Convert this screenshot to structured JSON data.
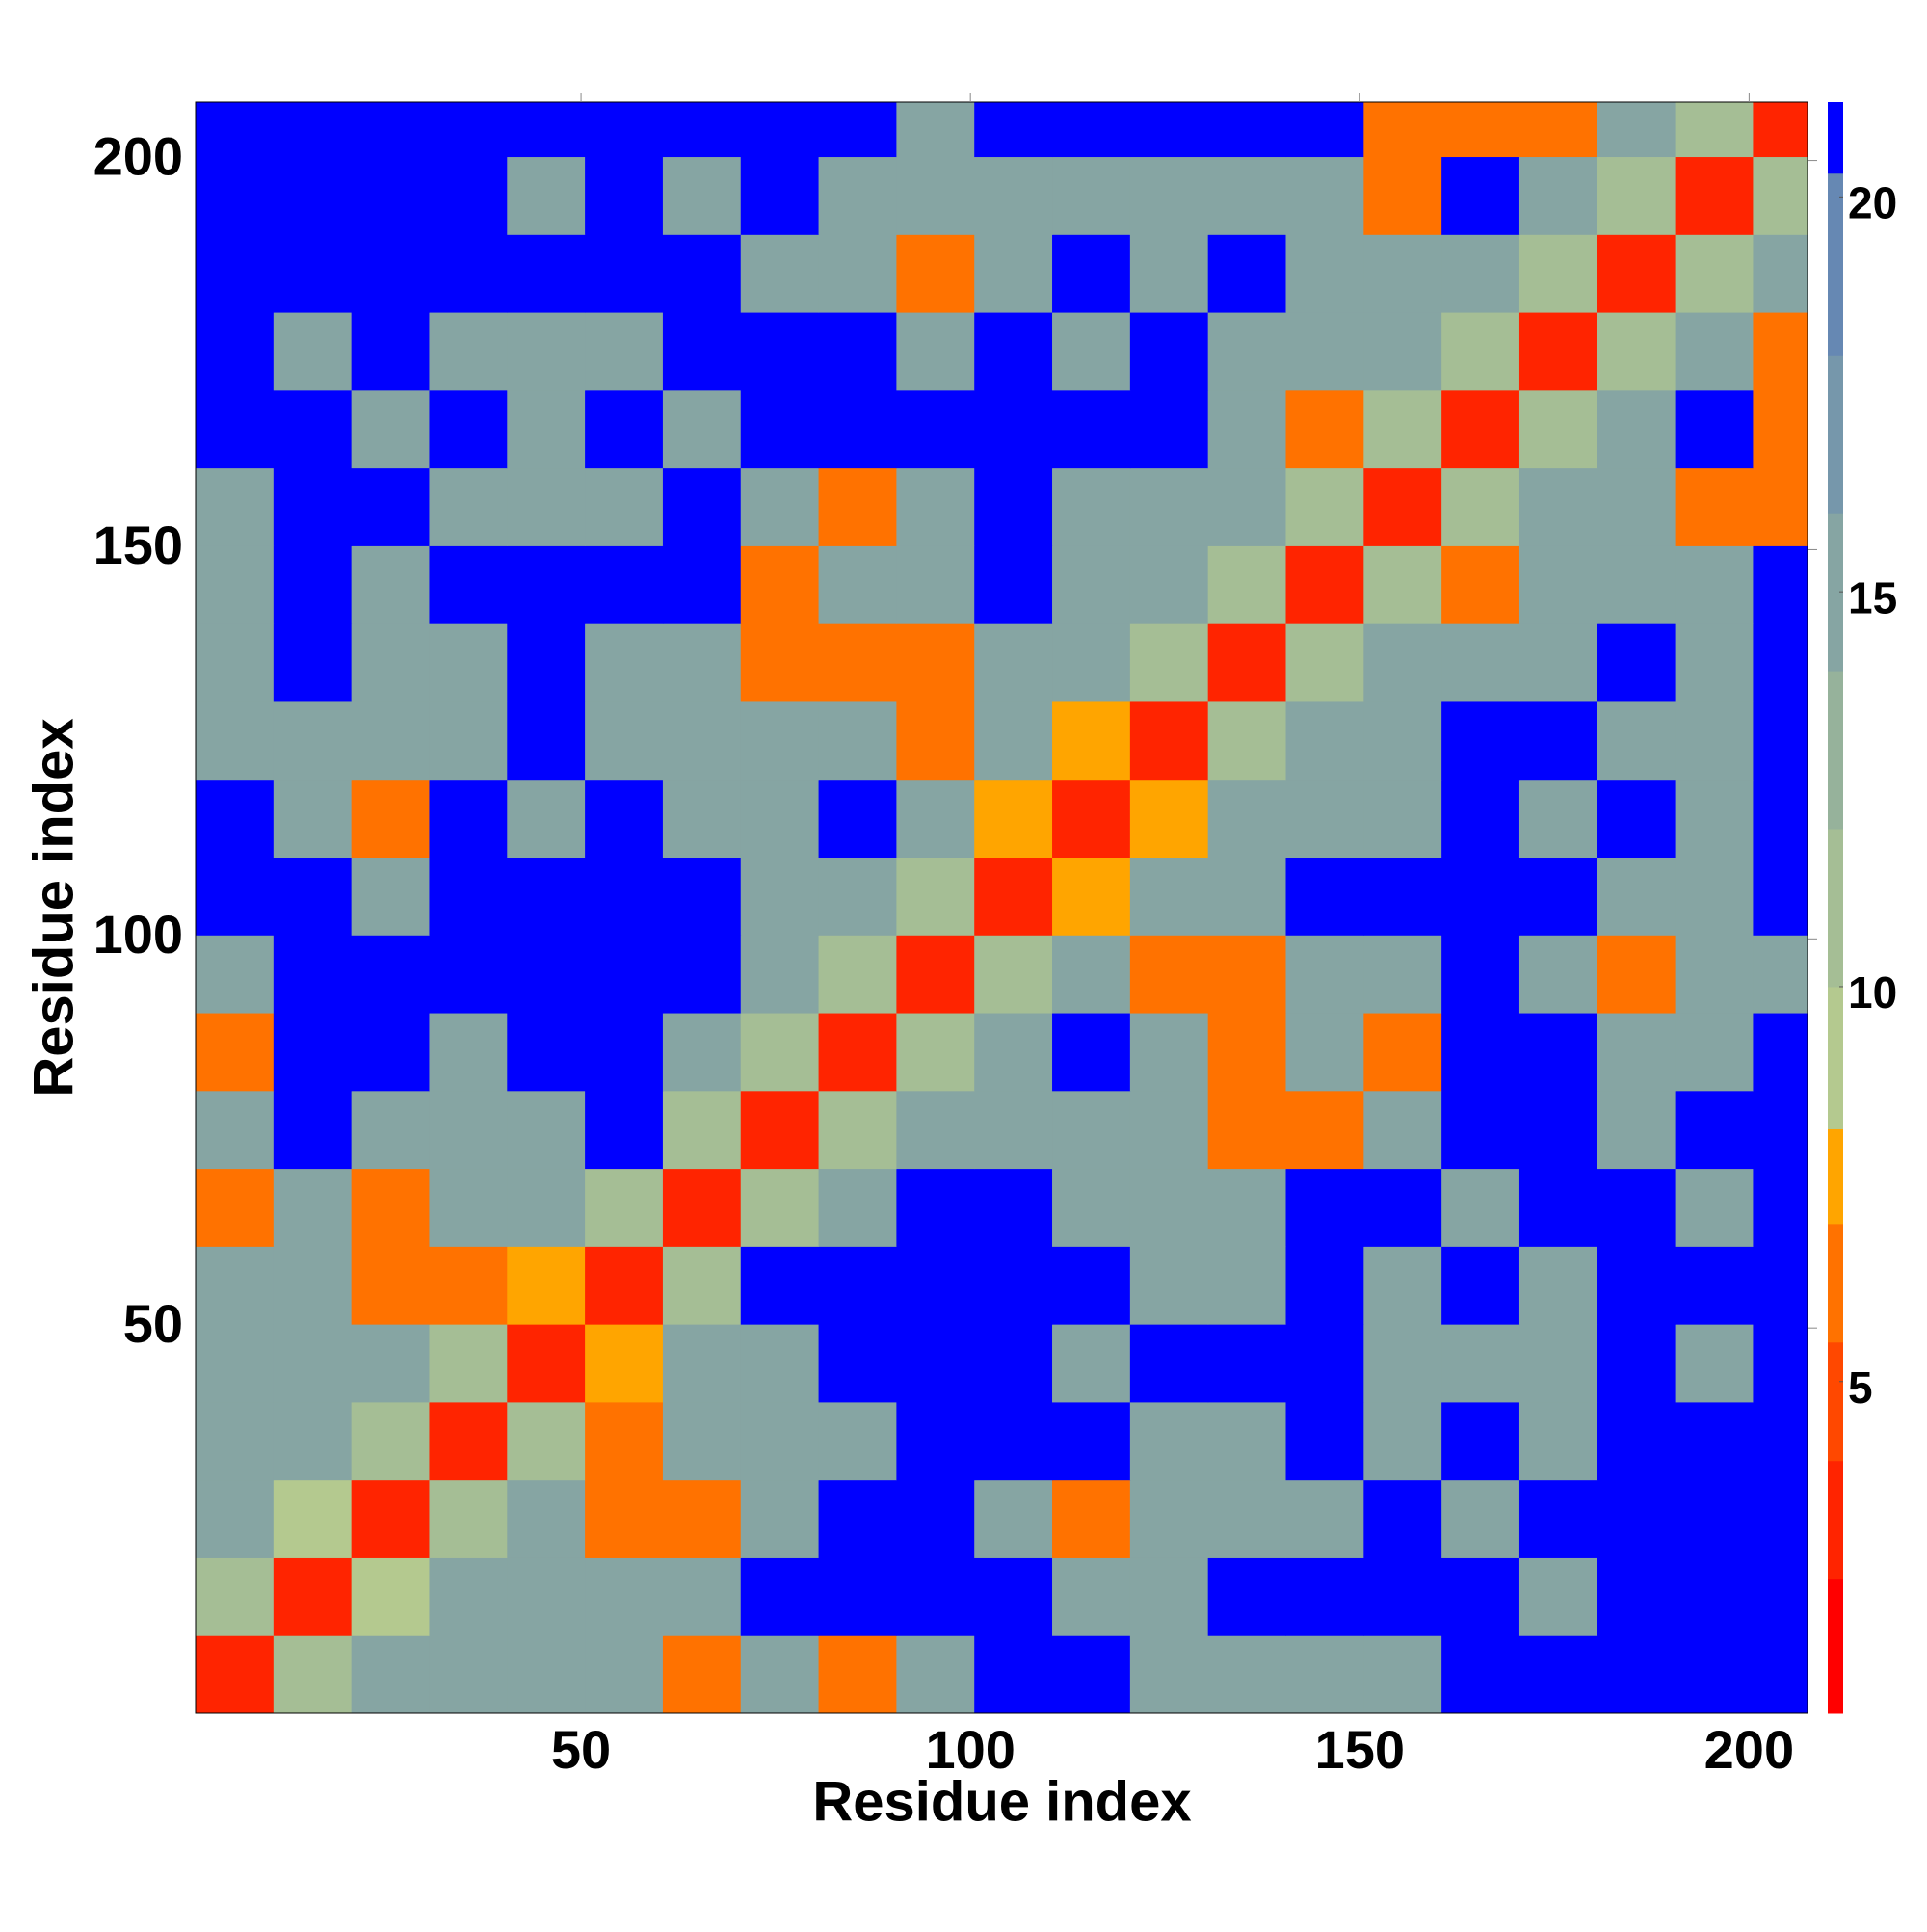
{
  "chart_data": {
    "type": "heatmap",
    "xlabel": "Residue index",
    "ylabel": "Residue index",
    "xlim": [
      0.5,
      207.5
    ],
    "ylim": [
      0.5,
      207.5
    ],
    "xticks": [
      50,
      100,
      150,
      200
    ],
    "yticks": [
      50,
      100,
      150,
      200
    ],
    "xbins": [
      0.5,
      10.5,
      20.5,
      30.5,
      40.5,
      50.5,
      60.5,
      70.5,
      80.5,
      90.5,
      100.5,
      110.5,
      120.5,
      130.5,
      140.5,
      150.5,
      160.5,
      170.5,
      180.5,
      190.5,
      200.5,
      207.5
    ],
    "ybins": [
      0.5,
      10.5,
      20.5,
      30.5,
      40.5,
      50.5,
      60.5,
      70.5,
      80.5,
      90.5,
      100.5,
      110.5,
      120.5,
      130.5,
      140.5,
      150.5,
      160.5,
      170.5,
      180.5,
      190.5,
      200.5,
      207.5
    ],
    "values": [
      [
        3,
        11,
        14,
        14,
        14,
        14,
        6,
        14,
        6,
        14,
        21,
        21,
        14,
        14,
        14,
        14,
        21,
        21,
        21,
        21,
        21
      ],
      [
        11,
        3,
        9,
        14,
        14,
        14,
        14,
        21,
        21,
        21,
        21,
        14,
        14,
        21,
        21,
        21,
        21,
        14,
        21,
        21,
        21
      ],
      [
        14,
        9,
        3,
        11,
        14,
        6,
        6,
        14,
        21,
        21,
        14,
        6,
        14,
        14,
        14,
        21,
        14,
        21,
        21,
        21,
        21
      ],
      [
        14,
        14,
        11,
        3,
        11,
        6,
        14,
        14,
        14,
        21,
        21,
        21,
        14,
        14,
        21,
        14,
        21,
        14,
        21,
        21,
        21
      ],
      [
        14,
        14,
        14,
        11,
        3,
        8,
        14,
        14,
        21,
        21,
        21,
        14,
        21,
        21,
        21,
        14,
        14,
        14,
        21,
        14,
        21
      ],
      [
        14,
        14,
        6,
        6,
        8,
        3,
        11,
        21,
        21,
        21,
        21,
        21,
        14,
        14,
        21,
        14,
        21,
        14,
        21,
        21,
        21
      ],
      [
        6,
        14,
        6,
        14,
        14,
        11,
        3,
        11,
        14,
        21,
        21,
        14,
        14,
        14,
        21,
        21,
        14,
        21,
        21,
        14,
        21
      ],
      [
        14,
        21,
        14,
        14,
        14,
        21,
        11,
        3,
        11,
        14,
        14,
        14,
        14,
        6,
        6,
        14,
        21,
        21,
        14,
        21,
        21
      ],
      [
        6,
        21,
        21,
        14,
        21,
        21,
        14,
        11,
        3,
        11,
        14,
        21,
        14,
        6,
        14,
        6,
        21,
        21,
        14,
        14,
        21
      ],
      [
        14,
        21,
        21,
        21,
        21,
        21,
        21,
        14,
        11,
        3,
        11,
        14,
        6,
        6,
        14,
        14,
        21,
        14,
        6,
        14,
        14
      ],
      [
        21,
        21,
        14,
        21,
        21,
        21,
        21,
        14,
        14,
        11,
        3,
        8,
        14,
        14,
        21,
        21,
        21,
        21,
        14,
        14,
        21
      ],
      [
        21,
        14,
        6,
        21,
        14,
        21,
        14,
        14,
        21,
        14,
        8,
        3,
        8,
        14,
        14,
        14,
        21,
        14,
        21,
        14,
        21
      ],
      [
        14,
        14,
        14,
        14,
        21,
        14,
        14,
        14,
        14,
        6,
        14,
        8,
        3,
        11,
        14,
        14,
        21,
        21,
        14,
        14,
        21
      ],
      [
        14,
        21,
        14,
        14,
        21,
        14,
        14,
        6,
        6,
        6,
        14,
        14,
        11,
        3,
        11,
        14,
        14,
        14,
        21,
        14,
        21
      ],
      [
        14,
        21,
        14,
        21,
        21,
        21,
        21,
        6,
        14,
        14,
        21,
        14,
        14,
        11,
        3,
        11,
        6,
        14,
        14,
        14,
        21
      ],
      [
        14,
        21,
        21,
        14,
        14,
        14,
        21,
        14,
        6,
        14,
        21,
        14,
        14,
        14,
        11,
        3,
        11,
        14,
        14,
        6,
        6
      ],
      [
        21,
        21,
        14,
        21,
        14,
        21,
        14,
        21,
        21,
        21,
        21,
        21,
        21,
        14,
        6,
        11,
        3,
        11,
        14,
        21,
        6
      ],
      [
        21,
        14,
        21,
        14,
        14,
        14,
        21,
        21,
        21,
        14,
        21,
        14,
        21,
        14,
        14,
        14,
        11,
        3,
        11,
        14,
        6
      ],
      [
        21,
        21,
        21,
        21,
        21,
        21,
        21,
        14,
        14,
        6,
        14,
        21,
        14,
        21,
        14,
        14,
        14,
        11,
        3,
        11,
        14
      ],
      [
        21,
        21,
        21,
        21,
        14,
        21,
        14,
        21,
        14,
        14,
        14,
        14,
        14,
        14,
        14,
        6,
        21,
        14,
        11,
        3,
        11
      ],
      [
        21,
        21,
        21,
        21,
        21,
        21,
        21,
        21,
        21,
        14,
        21,
        21,
        21,
        21,
        21,
        6,
        6,
        6,
        14,
        11,
        3
      ]
    ],
    "colorbar": {
      "lim": [
        0.8,
        21.2
      ],
      "ticks": [
        5,
        10,
        15,
        20
      ],
      "colorscale": [
        {
          "value": 2.5,
          "color": "#ff0000"
        },
        {
          "value": 4,
          "color": "#ff2400"
        },
        {
          "value": 5.5,
          "color": "#ff4800"
        },
        {
          "value": 7,
          "color": "#ff7200"
        },
        {
          "value": 8.2,
          "color": "#ffa500"
        },
        {
          "value": 10,
          "color": "#b4c98f"
        },
        {
          "value": 12,
          "color": "#a5be95"
        },
        {
          "value": 14,
          "color": "#96b29b"
        },
        {
          "value": 16,
          "color": "#86a5a3"
        },
        {
          "value": 18,
          "color": "#7697ab"
        },
        {
          "value": 20.3,
          "color": "#6688b3"
        },
        {
          "value": 21.2,
          "color": "#0000ff"
        }
      ]
    }
  }
}
